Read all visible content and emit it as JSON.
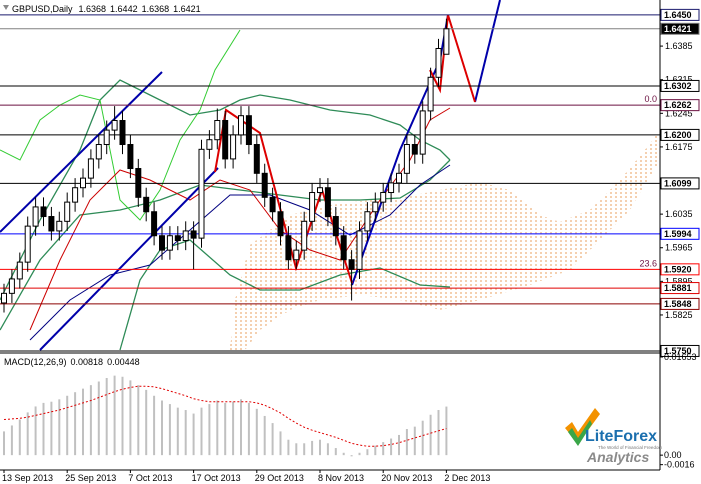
{
  "chart_data": {
    "type": "candlestick",
    "title": "GBPUSD,Daily",
    "categories": [
      "13 Sep 2013",
      null,
      null,
      null,
      null,
      null,
      null,
      null,
      "25 Sep 2013",
      null,
      null,
      null,
      null,
      null,
      null,
      null,
      "7 Oct 2013",
      null,
      null,
      null,
      null,
      null,
      null,
      null,
      "17 Oct 2013",
      null,
      null,
      null,
      null,
      null,
      null,
      null,
      "29 Oct 2013",
      null,
      null,
      null,
      null,
      null,
      null,
      null,
      "8 Nov 2013",
      null,
      null,
      null,
      null,
      null,
      null,
      null,
      "20 Nov 2013",
      null,
      null,
      null,
      null,
      null,
      null,
      null,
      "2 Dec 2013"
    ],
    "open": [
      1.585,
      1.587,
      1.59,
      1.5935,
      1.601,
      1.605,
      1.603,
      1.6,
      1.602,
      1.606,
      1.609,
      1.611,
      1.615,
      1.618,
      1.621,
      1.623,
      1.618,
      1.613,
      1.607,
      1.604,
      1.599,
      1.596,
      1.599,
      1.598,
      1.6,
      1.5985,
      1.617,
      1.619,
      1.623,
      1.615,
      1.62,
      1.624,
      1.618,
      1.612,
      1.607,
      1.604,
      1.599,
      1.594,
      1.596,
      1.602,
      1.608,
      1.609,
      1.603,
      1.599,
      1.594,
      1.592,
      1.6,
      1.604,
      1.606,
      1.608,
      1.61,
      1.612,
      1.618,
      1.616,
      1.625,
      1.632,
      1.6368
    ],
    "high": [
      1.589,
      1.592,
      1.5955,
      1.603,
      1.607,
      1.607,
      1.605,
      1.604,
      1.608,
      1.611,
      1.613,
      1.617,
      1.62,
      1.623,
      1.626,
      1.625,
      1.62,
      1.615,
      1.609,
      1.606,
      1.601,
      1.601,
      1.601,
      1.602,
      1.602,
      1.619,
      1.621,
      1.6255,
      1.625,
      1.622,
      1.626,
      1.626,
      1.62,
      1.614,
      1.609,
      1.606,
      1.601,
      1.598,
      1.604,
      1.61,
      1.611,
      1.611,
      1.605,
      1.601,
      1.596,
      1.602,
      1.606,
      1.608,
      1.61,
      1.612,
      1.614,
      1.62,
      1.62,
      1.627,
      1.634,
      1.64,
      1.6442
    ],
    "low": [
      1.583,
      1.585,
      1.588,
      1.5915,
      1.599,
      1.601,
      1.598,
      1.598,
      1.6,
      1.604,
      1.607,
      1.609,
      1.613,
      1.616,
      1.619,
      1.616,
      1.611,
      1.605,
      1.602,
      1.597,
      1.594,
      1.594,
      1.596,
      1.596,
      1.592,
      1.5965,
      1.615,
      1.617,
      1.613,
      1.613,
      1.618,
      1.616,
      1.61,
      1.605,
      1.602,
      1.597,
      1.592,
      1.592,
      1.594,
      1.6,
      1.606,
      1.601,
      1.597,
      1.592,
      1.5855,
      1.59,
      1.598,
      1.602,
      1.604,
      1.606,
      1.608,
      1.61,
      1.614,
      1.614,
      1.623,
      1.63,
      1.6368
    ],
    "close": [
      1.587,
      1.59,
      1.5935,
      1.601,
      1.605,
      1.603,
      1.6,
      1.602,
      1.606,
      1.609,
      1.611,
      1.615,
      1.618,
      1.621,
      1.623,
      1.618,
      1.613,
      1.607,
      1.604,
      1.599,
      1.596,
      1.599,
      1.598,
      1.6,
      1.5985,
      1.617,
      1.619,
      1.623,
      1.615,
      1.62,
      1.624,
      1.618,
      1.612,
      1.607,
      1.604,
      1.599,
      1.594,
      1.596,
      1.602,
      1.608,
      1.609,
      1.603,
      1.599,
      1.594,
      1.592,
      1.6,
      1.604,
      1.606,
      1.608,
      1.61,
      1.612,
      1.618,
      1.616,
      1.625,
      1.632,
      1.638,
      1.6421
    ],
    "ylim": [
      1.5752,
      1.6481
    ],
    "yticks": [
      1.6385,
      1.6315,
      1.6245,
      1.6175,
      1.6035,
      1.5965,
      1.5895,
      1.5825
    ],
    "levels": [
      {
        "value": 1.645,
        "label": "1.6450",
        "color": "#1a1a6e"
      },
      {
        "value": 1.6421,
        "label": "1.6421",
        "color": "#808080"
      },
      {
        "value": 1.6302,
        "label": "1.6302",
        "color": "#000000"
      },
      {
        "value": 1.6262,
        "label": "1.6262",
        "color": "#6b1040"
      },
      {
        "value": 1.62,
        "label": "1.6200",
        "color": "#000000"
      },
      {
        "value": 1.6099,
        "label": "1.6099",
        "color": "#000000"
      },
      {
        "value": 1.5994,
        "label": "1.5994",
        "color": "#0000ff"
      },
      {
        "value": 1.592,
        "label": "1.5920",
        "color": "#ff0000"
      },
      {
        "value": 1.5881,
        "label": "1.5881",
        "color": "#e00000"
      },
      {
        "value": 1.5848,
        "label": "1.5848",
        "color": "#8b0000"
      },
      {
        "value": 1.575,
        "label": "1.5750",
        "color": "#000000"
      }
    ],
    "fibo_labels": [
      "0.0",
      "23.6"
    ],
    "macd": {
      "name": "MACD(12,26,9)",
      "histogram": [
        0.004,
        0.005,
        0.006,
        0.0072,
        0.0082,
        0.0088,
        0.009,
        0.0094,
        0.01,
        0.0106,
        0.0112,
        0.0118,
        0.0124,
        0.013,
        0.0134,
        0.0132,
        0.0126,
        0.0118,
        0.011,
        0.01,
        0.0092,
        0.0086,
        0.008,
        0.0076,
        0.007,
        0.008,
        0.0086,
        0.0092,
        0.0088,
        0.009,
        0.0094,
        0.0088,
        0.0078,
        0.0066,
        0.0054,
        0.004,
        0.0026,
        0.002,
        0.002,
        0.0024,
        0.0026,
        0.002,
        0.0012,
        0.0004,
        -0.0002,
        0.0004,
        0.001,
        0.0016,
        0.0022,
        0.0028,
        0.0034,
        0.0044,
        0.0048,
        0.0058,
        0.0068,
        0.0076,
        0.00818
      ],
      "signal": [
        0.006,
        0.0061,
        0.0062,
        0.0064,
        0.0067,
        0.007,
        0.0073,
        0.0076,
        0.008,
        0.0084,
        0.0088,
        0.0092,
        0.0097,
        0.0102,
        0.0107,
        0.0111,
        0.0114,
        0.0116,
        0.0116,
        0.0115,
        0.0112,
        0.0108,
        0.0104,
        0.01,
        0.0095,
        0.0092,
        0.009,
        0.009,
        0.009,
        0.009,
        0.009,
        0.009,
        0.0088,
        0.0084,
        0.0078,
        0.0071,
        0.0062,
        0.0054,
        0.0047,
        0.0042,
        0.0038,
        0.0034,
        0.003,
        0.0025,
        0.002,
        0.0017,
        0.0015,
        0.0015,
        0.0016,
        0.0018,
        0.0021,
        0.0025,
        0.0029,
        0.0033,
        0.0037,
        0.0041,
        0.00448
      ],
      "histogram_color": "#c0c0c0",
      "signal_color": "#e00000",
      "ylim": [
        -0.0025,
        0.0172
      ],
      "yticks": [
        0.01653,
        {
          "value": 0,
          "label": "0.00"
        },
        -0.0016
      ]
    },
    "logo": {
      "name": "LiteForex",
      "tagline": "The World of Financial Freedom",
      "subtitle": "Analytics"
    }
  }
}
